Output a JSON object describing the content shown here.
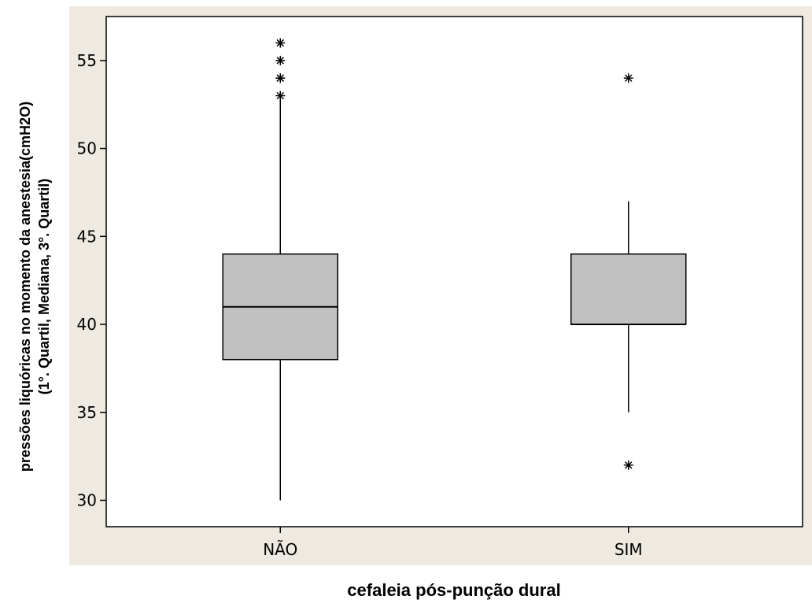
{
  "chart_data": {
    "type": "boxplot",
    "xlabel": "cefaleia pós-punção dural",
    "ylabel_line1": "pressões liquóricas no momento da anestesia(cmH2O)",
    "ylabel_line2": "(1°. Quartil, Mediana, 3°. Quartil)",
    "ylim": [
      28.5,
      57.5
    ],
    "yticks": [
      30,
      35,
      40,
      45,
      50,
      55
    ],
    "categories": [
      "NÃO",
      "SIM"
    ],
    "boxes": [
      {
        "category": "NÃO",
        "whisker_low": 30,
        "q1": 38,
        "median": 41,
        "q3": 44,
        "whisker_high": 53,
        "outliers": [
          53,
          54,
          54,
          55,
          56
        ]
      },
      {
        "category": "SIM",
        "whisker_low": 35,
        "q1": 40,
        "median": 40,
        "q3": 44,
        "whisker_high": 47,
        "outliers": [
          32,
          54
        ]
      }
    ],
    "colors": {
      "box_fill": "#c0c0c0",
      "outer_background": "#efeae1",
      "plot_background": "#ffffff",
      "line": "#000000"
    }
  }
}
